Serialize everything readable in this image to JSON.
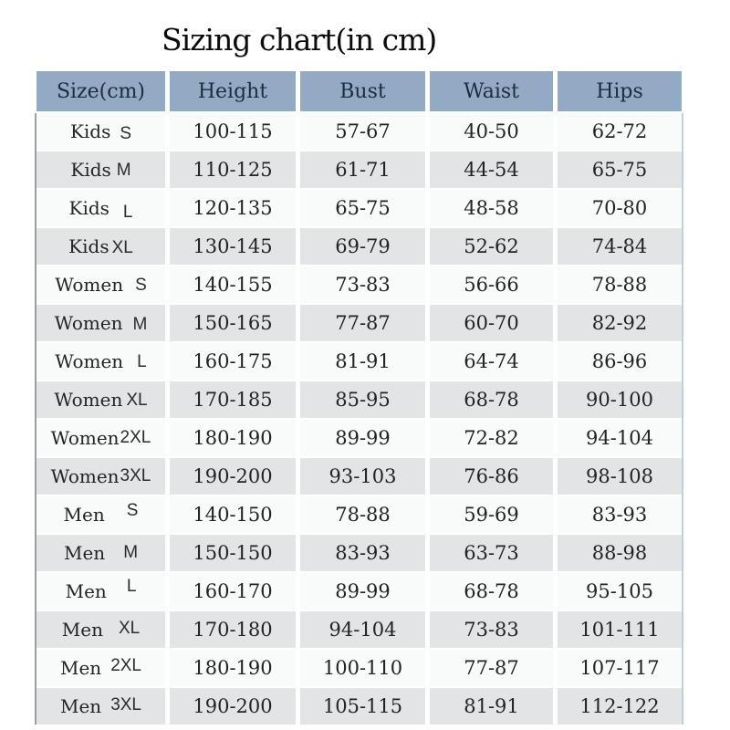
{
  "title": "Sizing chart(in cm)",
  "colors": {
    "header_bg": "#92aac4",
    "header_text": "#1e2c3d",
    "row_light_bg": "#f9fafa",
    "row_dark_bg": "#e3e4e5",
    "body_text": "#222324"
  },
  "table": {
    "headers": [
      "Size(cm)",
      "Height",
      "Bust",
      "Waist",
      "Hips"
    ],
    "rows": [
      {
        "group": "Kids",
        "size": "S",
        "height": "100-115",
        "bust": "57-67",
        "waist": "40-50",
        "hips": "62-72"
      },
      {
        "group": "Kids",
        "size": "M",
        "height": "110-125",
        "bust": "61-71",
        "waist": "44-54",
        "hips": "65-75"
      },
      {
        "group": "Kids",
        "size": "L",
        "height": "120-135",
        "bust": "65-75",
        "waist": "48-58",
        "hips": "70-80"
      },
      {
        "group": "Kids",
        "size": "XL",
        "height": "130-145",
        "bust": "69-79",
        "waist": "52-62",
        "hips": "74-84"
      },
      {
        "group": "Women",
        "size": "S",
        "height": "140-155",
        "bust": "73-83",
        "waist": "56-66",
        "hips": "78-88"
      },
      {
        "group": "Women",
        "size": "M",
        "height": "150-165",
        "bust": "77-87",
        "waist": "60-70",
        "hips": "82-92"
      },
      {
        "group": "Women",
        "size": "L",
        "height": "160-175",
        "bust": "81-91",
        "waist": "64-74",
        "hips": "86-96"
      },
      {
        "group": "Women",
        "size": "XL",
        "height": "170-185",
        "bust": "85-95",
        "waist": "68-78",
        "hips": "90-100"
      },
      {
        "group": "Women",
        "size": "2XL",
        "height": "180-190",
        "bust": "89-99",
        "waist": "72-82",
        "hips": "94-104"
      },
      {
        "group": "Women",
        "size": "3XL",
        "height": "190-200",
        "bust": "93-103",
        "waist": "76-86",
        "hips": "98-108"
      },
      {
        "group": "Men",
        "size": "S",
        "height": "140-150",
        "bust": "78-88",
        "waist": "59-69",
        "hips": "83-93"
      },
      {
        "group": "Men",
        "size": "M",
        "height": "150-150",
        "bust": "83-93",
        "waist": "63-73",
        "hips": "88-98"
      },
      {
        "group": "Men",
        "size": "L",
        "height": "160-170",
        "bust": "89-99",
        "waist": "68-78",
        "hips": "95-105"
      },
      {
        "group": "Men",
        "size": "XL",
        "height": "170-180",
        "bust": "94-104",
        "waist": "73-83",
        "hips": "101-111"
      },
      {
        "group": "Men",
        "size": "2XL",
        "height": "180-190",
        "bust": "100-110",
        "waist": "77-87",
        "hips": "107-117"
      },
      {
        "group": "Men",
        "size": "3XL",
        "height": "190-200",
        "bust": "105-115",
        "waist": "81-91",
        "hips": "112-122"
      }
    ]
  }
}
